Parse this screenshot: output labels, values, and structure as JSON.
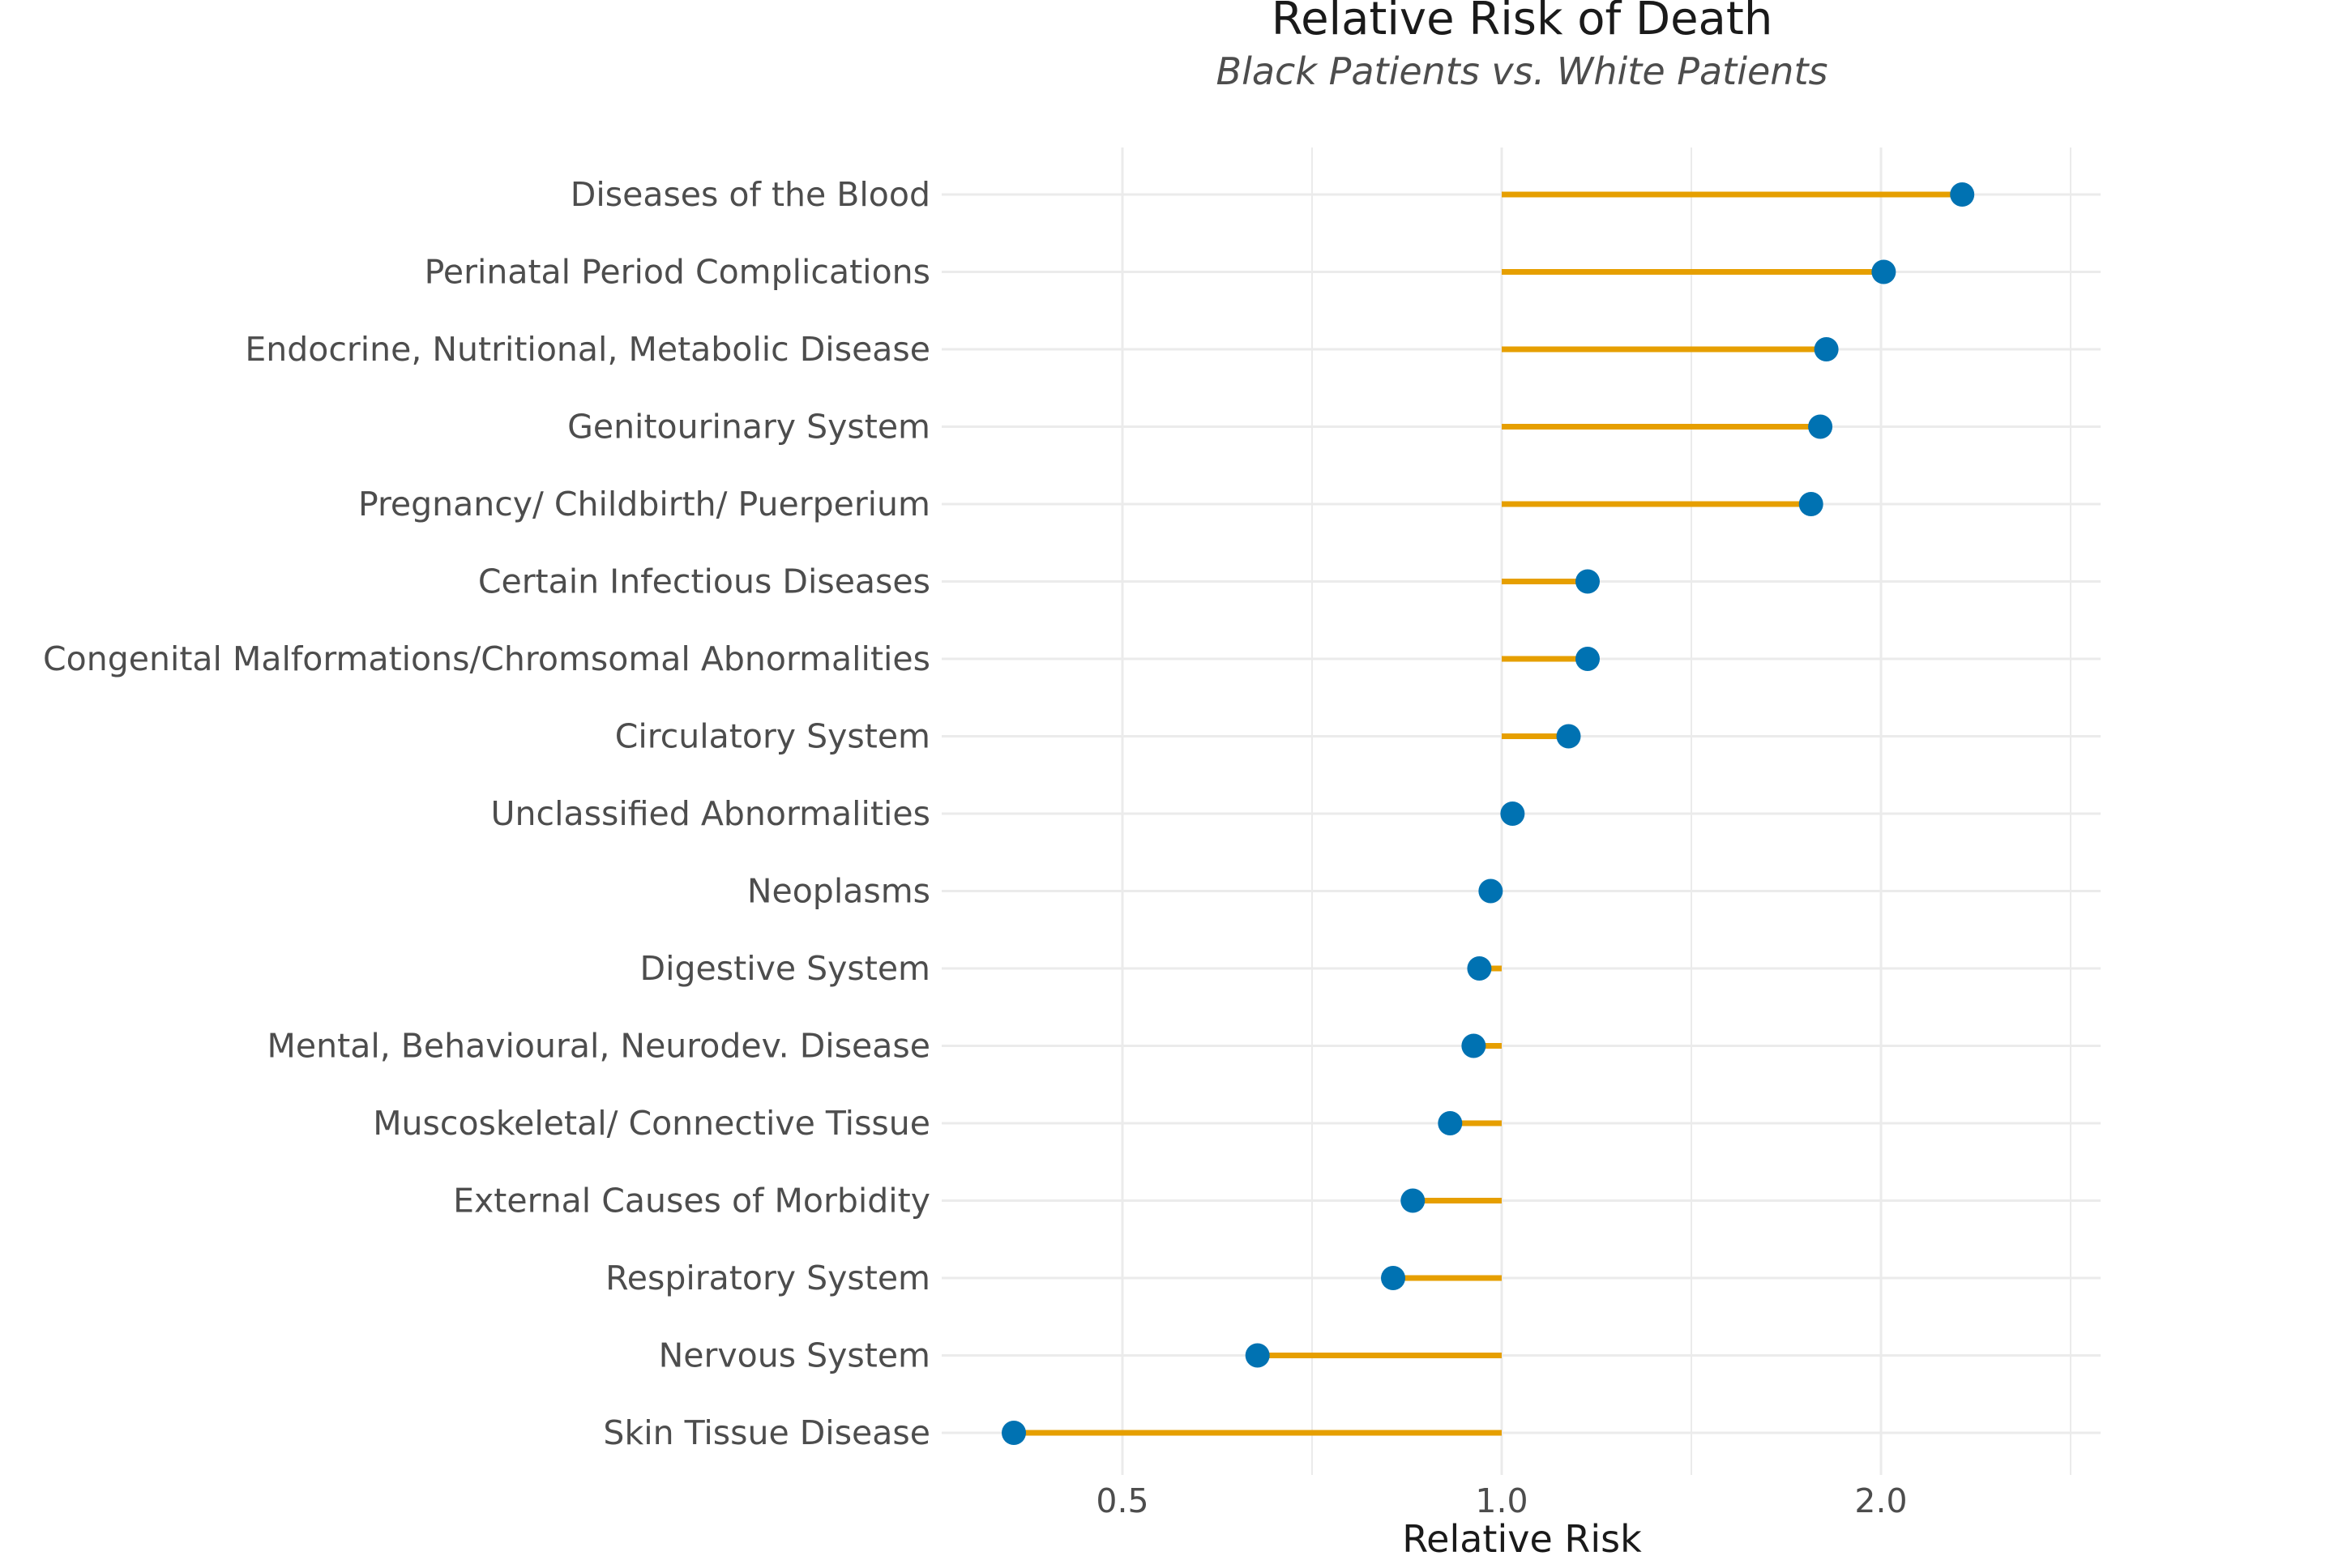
{
  "chart_data": {
    "type": "lollipop",
    "title": "Relative Risk of Death",
    "subtitle": "Black Patients vs. White Patients",
    "xlabel": "Relative Risk",
    "ylabel": "",
    "x_scale": "log2",
    "xlim": [
      0.4,
      2.5
    ],
    "baseline": 1.0,
    "x_ticks": [
      {
        "value": 0.5,
        "label": "0.5"
      },
      {
        "value": 1.0,
        "label": "1.0"
      },
      {
        "value": 2.0,
        "label": "2.0"
      }
    ],
    "grid": true,
    "legend": "none",
    "colors": {
      "stem": "#E69F00",
      "point": "#0072B2",
      "grid": "#ebebeb"
    },
    "categories": [
      "Diseases of the Blood",
      "Perinatal Period Complications",
      "Endocrine, Nutritional, Metabolic Disease",
      "Genitourinary System",
      "Pregnancy/ Childbirth/ Puerperium",
      "Certain Infectious Diseases",
      "Congenital Malformations/Chromsomal Abnormalities",
      "Circulatory System",
      "Unclassified Abnormalities",
      "Neoplasms",
      "Digestive System",
      "Mental, Behavioural, Neurodev. Disease",
      "Muscoskeletal/ Connective Tissue",
      "External Causes of Morbidity",
      "Respiratory System",
      "Nervous System",
      "Skin Tissue Disease"
    ],
    "values": [
      2.32,
      2.01,
      1.81,
      1.79,
      1.76,
      1.17,
      1.17,
      1.13,
      1.02,
      0.98,
      0.96,
      0.95,
      0.91,
      0.85,
      0.82,
      0.64,
      0.41
    ]
  }
}
